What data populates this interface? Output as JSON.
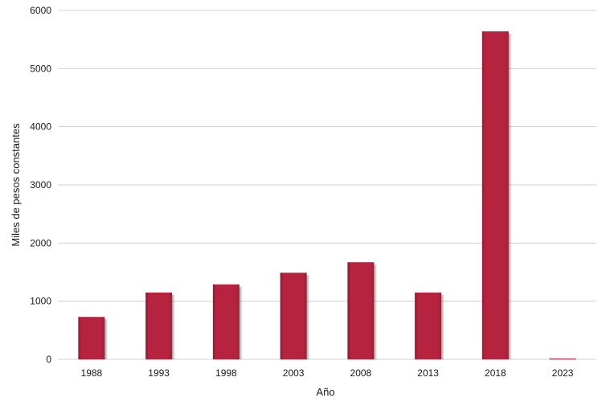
{
  "chart_data": {
    "type": "bar",
    "title": "",
    "xlabel": "Año",
    "ylabel": "Miles de pesos constantes",
    "categories": [
      "1988",
      "1993",
      "1998",
      "2003",
      "2008",
      "2013",
      "2018",
      "2023"
    ],
    "values": [
      730,
      1150,
      1290,
      1490,
      1670,
      1150,
      5640,
      15
    ],
    "ylim": [
      0,
      6000
    ],
    "yticks": [
      0,
      1000,
      2000,
      3000,
      4000,
      5000,
      6000
    ],
    "grid": true,
    "legend": "none",
    "bar_color": "#b5233f",
    "bar_shadow_color": "#7a1428",
    "grid_color": "#d0d0d0"
  }
}
